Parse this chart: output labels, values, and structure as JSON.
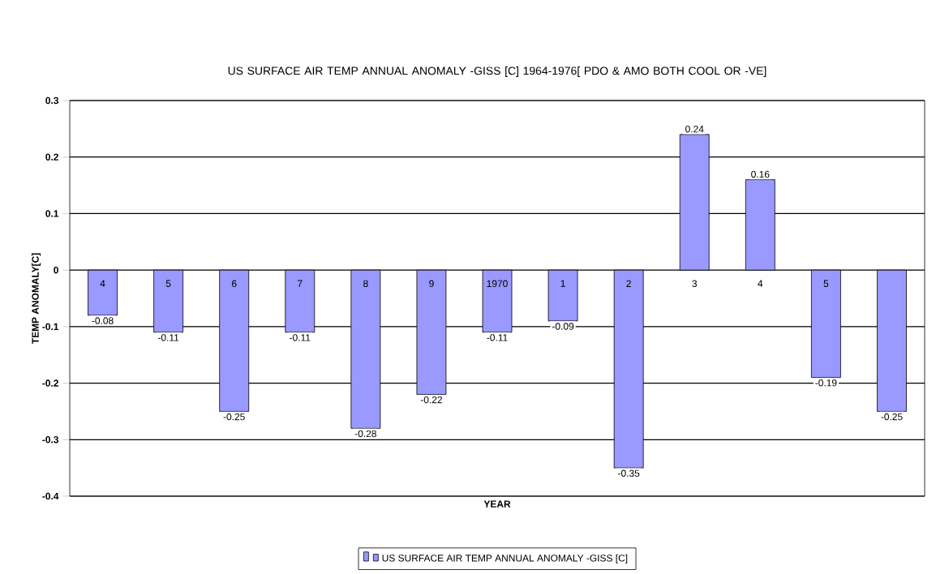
{
  "chart_data": {
    "type": "bar",
    "title": "US  SURFACE AIR TEMP ANNUAL ANOMALY -GISS [C] 1964-1976[ PDO & AMO BOTH COOL OR -VE]",
    "xlabel": "YEAR",
    "ylabel": "TEMP ANOMALY[C]",
    "categories": [
      "4",
      "5",
      "6",
      "7",
      "8",
      "9",
      "1970",
      "1",
      "2",
      "3",
      "4",
      "5",
      null
    ],
    "series": [
      {
        "name": "US SURFACE AIR TEMP ANNUAL ANOMALY -GISS [C]",
        "color": "#9999ff",
        "values": [
          -0.08,
          -0.11,
          -0.25,
          -0.11,
          -0.28,
          -0.22,
          -0.11,
          -0.09,
          -0.35,
          0.24,
          0.16,
          -0.19,
          -0.25
        ]
      }
    ],
    "ylim": [
      -0.4,
      0.3
    ],
    "yticks": [
      -0.4,
      -0.3,
      -0.2,
      -0.1,
      0,
      0.1,
      0.2,
      0.3
    ],
    "grid": true,
    "legend": "bottom",
    "data_labels": true
  }
}
